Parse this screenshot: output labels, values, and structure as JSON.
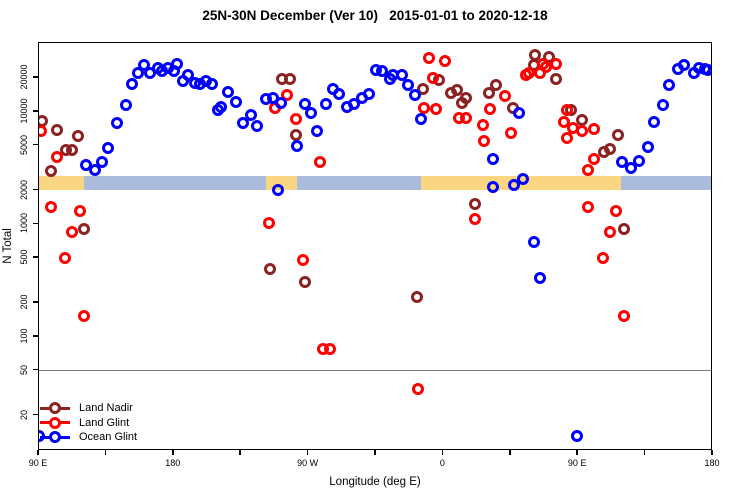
{
  "title": "25N-30N December (Ver 10)   2015-01-01 to 2020-12-18",
  "axes": {
    "x": {
      "label": "Longitude (deg E)",
      "range_deg_from_left": [
        0,
        450
      ],
      "major_ticks": [
        {
          "pos": 0,
          "label": "90 E"
        },
        {
          "pos": 90,
          "label": "180"
        },
        {
          "pos": 180,
          "label": "90 W"
        },
        {
          "pos": 270,
          "label": "0"
        },
        {
          "pos": 360,
          "label": "90 E"
        },
        {
          "pos": 450,
          "label": "180"
        }
      ],
      "minor_ticks": [
        45,
        135,
        225,
        315,
        405
      ]
    },
    "y": {
      "label": "N Total",
      "scale": "log",
      "ticks": [
        20,
        50,
        100,
        200,
        500,
        1000,
        2000,
        5000,
        10000,
        20000
      ],
      "reference_line_value": 50
    }
  },
  "legend": {
    "entries": [
      {
        "label": "Land Nadir",
        "color": "#8B2323"
      },
      {
        "label": "Land Glint",
        "color": "#FF0000"
      },
      {
        "label": "Ocean Glint",
        "color": "#0000FF"
      }
    ]
  },
  "map_band": {
    "description": "land/ocean strip drawn across plot near N=2100-2700",
    "land_color": "#FAD582",
    "ocean_color": "#AABBDB",
    "segments": [
      {
        "from": 0,
        "to": 31,
        "type": "land"
      },
      {
        "from": 31,
        "to": 152,
        "type": "ocean"
      },
      {
        "from": 152,
        "to": 173,
        "type": "land"
      },
      {
        "from": 173,
        "to": 256,
        "type": "ocean"
      },
      {
        "from": 256,
        "to": 389,
        "type": "land"
      },
      {
        "from": 389,
        "to": 450,
        "type": "ocean"
      }
    ]
  },
  "chart_data": {
    "type": "scatter",
    "title": "25N-30N December (Ver 10)   2015-01-01 to 2020-12-18",
    "xlabel": "Longitude (deg E)",
    "ylabel": "N Total",
    "x_axis_note": "x stored as degrees east of left edge; labels wrap: 0=90E, 90=180, 180=90W, 270=0, 360=90E, 450=180",
    "ylim": [
      9,
      43000
    ],
    "y_scale": "log",
    "grid": false,
    "legend_position": "bottom-left",
    "series": [
      {
        "name": "Land Nadir",
        "color": "#8B2323",
        "marker": "open-circle",
        "points": [
          [
            3,
            8100
          ],
          [
            13,
            6800
          ],
          [
            27,
            6000
          ],
          [
            19,
            4500
          ],
          [
            23,
            4500
          ],
          [
            9,
            2900
          ],
          [
            163,
            19200
          ],
          [
            168,
            19200
          ],
          [
            172,
            6100
          ],
          [
            268,
            18800
          ],
          [
            257,
            15600
          ],
          [
            276,
            14400
          ],
          [
            280,
            15300
          ],
          [
            286,
            13000
          ],
          [
            283,
            11700
          ],
          [
            301,
            14400
          ],
          [
            306,
            17000
          ],
          [
            317,
            10600
          ],
          [
            332,
            31400
          ],
          [
            341,
            30100
          ],
          [
            331,
            25600
          ],
          [
            346,
            19200
          ],
          [
            356,
            10200
          ],
          [
            363,
            8300
          ],
          [
            387,
            6100
          ],
          [
            382,
            4600
          ],
          [
            378,
            4300
          ],
          [
            31,
            890
          ],
          [
            155,
            390
          ],
          [
            178,
            300
          ],
          [
            253,
            220
          ],
          [
            292,
            1500
          ],
          [
            391,
            890
          ]
        ]
      },
      {
        "name": "Land Glint",
        "color": "#FF0000",
        "marker": "open-circle",
        "points": [
          [
            2,
            6600
          ],
          [
            13,
            3900
          ],
          [
            166,
            13800
          ],
          [
            158,
            10600
          ],
          [
            172,
            8500
          ],
          [
            188,
            3500
          ],
          [
            261,
            29500
          ],
          [
            272,
            27700
          ],
          [
            264,
            19600
          ],
          [
            258,
            10600
          ],
          [
            266,
            10400
          ],
          [
            281,
            8700
          ],
          [
            286,
            8700
          ],
          [
            297,
            7500
          ],
          [
            302,
            10400
          ],
          [
            312,
            13600
          ],
          [
            298,
            5400
          ],
          [
            316,
            6400
          ],
          [
            346,
            26100
          ],
          [
            337,
            26100
          ],
          [
            339,
            24500
          ],
          [
            328,
            21700
          ],
          [
            335,
            21700
          ],
          [
            326,
            20800
          ],
          [
            353,
            10200
          ],
          [
            351,
            8000
          ],
          [
            357,
            7000
          ],
          [
            363,
            6600
          ],
          [
            353,
            5700
          ],
          [
            371,
            6900
          ],
          [
            371,
            3700
          ],
          [
            367,
            3000
          ],
          [
            9,
            1400
          ],
          [
            28,
            1300
          ],
          [
            23,
            840
          ],
          [
            18,
            490
          ],
          [
            31,
            150
          ],
          [
            154,
            1000
          ],
          [
            177,
            470
          ],
          [
            190,
            76
          ],
          [
            195,
            76
          ],
          [
            254,
            34
          ],
          [
            292,
            1100
          ],
          [
            367,
            1400
          ],
          [
            386,
            1300
          ],
          [
            382,
            840
          ],
          [
            377,
            490
          ],
          [
            391,
            150
          ]
        ]
      },
      {
        "name": "Ocean Glint",
        "color": "#0000FF",
        "marker": "open-circle",
        "points": [
          [
            32,
            3300
          ],
          [
            38,
            3000
          ],
          [
            43,
            3500
          ],
          [
            47,
            4700
          ],
          [
            53,
            7800
          ],
          [
            59,
            11300
          ],
          [
            63,
            17300
          ],
          [
            67,
            21700
          ],
          [
            71,
            25600
          ],
          [
            75,
            21700
          ],
          [
            80,
            24000
          ],
          [
            83,
            22600
          ],
          [
            87,
            24000
          ],
          [
            91,
            22600
          ],
          [
            93,
            26100
          ],
          [
            97,
            18400
          ],
          [
            100,
            20800
          ],
          [
            105,
            17700
          ],
          [
            108,
            17500
          ],
          [
            112,
            18400
          ],
          [
            116,
            17500
          ],
          [
            120,
            10200
          ],
          [
            122,
            10800
          ],
          [
            127,
            14700
          ],
          [
            132,
            12000
          ],
          [
            137,
            7800
          ],
          [
            142,
            9200
          ],
          [
            146,
            7300
          ],
          [
            152,
            12700
          ],
          [
            157,
            12900
          ],
          [
            162,
            11700
          ],
          [
            173,
            4900
          ],
          [
            178,
            11500
          ],
          [
            182,
            9600
          ],
          [
            186,
            6600
          ],
          [
            192,
            11500
          ],
          [
            197,
            15600
          ],
          [
            201,
            14100
          ],
          [
            206,
            10800
          ],
          [
            211,
            11500
          ],
          [
            216,
            13000
          ],
          [
            221,
            14100
          ],
          [
            226,
            23100
          ],
          [
            230,
            22600
          ],
          [
            235,
            19200
          ],
          [
            237,
            20800
          ],
          [
            243,
            20800
          ],
          [
            247,
            17000
          ],
          [
            252,
            13800
          ],
          [
            256,
            8500
          ],
          [
            160,
            2000
          ],
          [
            304,
            2100
          ],
          [
            318,
            2200
          ],
          [
            324,
            2500
          ],
          [
            321,
            9600
          ],
          [
            304,
            3700
          ],
          [
            331,
            680
          ],
          [
            335,
            330
          ],
          [
            390,
            3500
          ],
          [
            396,
            3100
          ],
          [
            401,
            3600
          ],
          [
            407,
            4800
          ],
          [
            411,
            8000
          ],
          [
            417,
            11300
          ],
          [
            421,
            17000
          ],
          [
            427,
            23500
          ],
          [
            431,
            25600
          ],
          [
            438,
            21700
          ],
          [
            441,
            24000
          ],
          [
            445,
            23800
          ],
          [
            447,
            23300
          ],
          [
            360,
            13
          ],
          [
            1,
            13
          ]
        ]
      }
    ]
  }
}
